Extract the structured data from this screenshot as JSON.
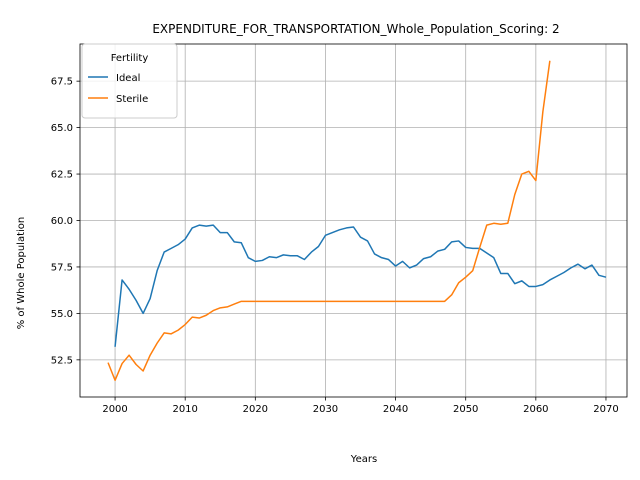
{
  "chart_data": {
    "type": "line",
    "title": "EXPENDITURE_FOR_TRANSPORTATION_Whole_Population_Scoring: 2",
    "xlabel": "Years",
    "ylabel": "% of Whole Population",
    "xlim": [
      1995,
      2073
    ],
    "ylim": [
      50.5,
      69.5
    ],
    "x_ticks": [
      2000,
      2010,
      2020,
      2030,
      2040,
      2050,
      2060,
      2070
    ],
    "y_ticks": [
      52.5,
      55.0,
      57.5,
      60.0,
      62.5,
      65.0,
      67.5
    ],
    "y_tick_labels": [
      "52.5",
      "55.0",
      "57.5",
      "60.0",
      "62.5",
      "65.0",
      "67.5"
    ],
    "grid": true,
    "legend": {
      "title": "Fertility",
      "position": "top-left"
    },
    "series": [
      {
        "name": "Ideal",
        "color": "#1f77b4",
        "x": [
          2000,
          2001,
          2002,
          2003,
          2004,
          2005,
          2006,
          2007,
          2008,
          2009,
          2010,
          2011,
          2012,
          2013,
          2014,
          2015,
          2016,
          2017,
          2018,
          2019,
          2020,
          2021,
          2022,
          2023,
          2024,
          2025,
          2026,
          2027,
          2028,
          2029,
          2030,
          2031,
          2032,
          2033,
          2034,
          2035,
          2036,
          2037,
          2038,
          2039,
          2040,
          2041,
          2042,
          2043,
          2044,
          2045,
          2046,
          2047,
          2048,
          2049,
          2050,
          2051,
          2052,
          2053,
          2054,
          2055,
          2056,
          2057,
          2058,
          2059,
          2060,
          2061,
          2062,
          2063,
          2064,
          2065,
          2066,
          2067,
          2068,
          2069,
          2070
        ],
        "values": [
          53.2,
          56.8,
          56.3,
          55.7,
          55.0,
          55.8,
          57.3,
          58.3,
          58.5,
          58.7,
          59.0,
          59.6,
          59.75,
          59.7,
          59.75,
          59.35,
          59.35,
          58.85,
          58.8,
          58.0,
          57.8,
          57.85,
          58.05,
          58.0,
          58.15,
          58.1,
          58.1,
          57.9,
          58.3,
          58.6,
          59.2,
          59.35,
          59.5,
          59.6,
          59.65,
          59.1,
          58.9,
          58.2,
          58.0,
          57.9,
          57.55,
          57.8,
          57.45,
          57.6,
          57.95,
          58.05,
          58.35,
          58.45,
          58.85,
          58.9,
          58.55,
          58.5,
          58.5,
          58.25,
          58.0,
          57.15,
          57.15,
          56.6,
          56.75,
          56.45,
          56.45,
          56.55,
          56.8,
          57.0,
          57.2,
          57.45,
          57.65,
          57.4,
          57.6,
          57.05,
          56.95
        ]
      },
      {
        "name": "Sterile",
        "color": "#ff7f0e",
        "x": [
          1999,
          2000,
          2001,
          2002,
          2003,
          2004,
          2005,
          2006,
          2007,
          2008,
          2009,
          2010,
          2011,
          2012,
          2013,
          2014,
          2015,
          2016,
          2017,
          2018,
          2019,
          2020,
          2021,
          2022,
          2023,
          2024,
          2025,
          2026,
          2027,
          2028,
          2029,
          2030,
          2031,
          2032,
          2033,
          2034,
          2035,
          2036,
          2037,
          2038,
          2039,
          2040,
          2041,
          2042,
          2043,
          2044,
          2045,
          2046,
          2047,
          2048,
          2049,
          2050,
          2051,
          2052,
          2053,
          2054,
          2055,
          2056,
          2057,
          2058,
          2059,
          2060,
          2061,
          2062
        ],
        "values": [
          52.35,
          51.4,
          52.3,
          52.75,
          52.25,
          51.9,
          52.75,
          53.4,
          53.95,
          53.9,
          54.1,
          54.4,
          54.8,
          54.75,
          54.9,
          55.15,
          55.3,
          55.35,
          55.5,
          55.65,
          55.65,
          55.65,
          55.65,
          55.65,
          55.65,
          55.65,
          55.65,
          55.65,
          55.65,
          55.65,
          55.65,
          55.65,
          55.65,
          55.65,
          55.65,
          55.65,
          55.65,
          55.65,
          55.65,
          55.65,
          55.65,
          55.65,
          55.65,
          55.65,
          55.65,
          55.65,
          55.65,
          55.65,
          55.65,
          56.0,
          56.65,
          56.95,
          57.3,
          58.55,
          59.75,
          59.85,
          59.8,
          59.85,
          61.4,
          62.5,
          62.65,
          62.15,
          65.85,
          68.6
        ]
      }
    ]
  }
}
